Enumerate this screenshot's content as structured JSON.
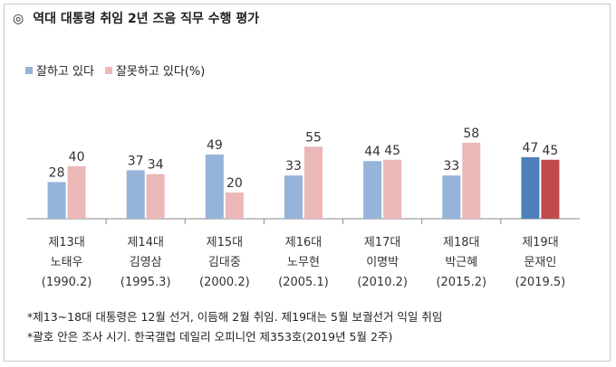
{
  "title": {
    "mark": "◎",
    "text": "역대 대통령 취임 2년 즈음 직무 수행 평가"
  },
  "legend": {
    "positive": "잘하고 있다",
    "negative": "잘못하고 있다(%)"
  },
  "colors": {
    "positive": "#96b3da",
    "negative": "#ebb7b7",
    "positive_current": "#4f7fb9",
    "negative_current": "#c04a4a",
    "axis": "#8a8a8a"
  },
  "chart_data": {
    "type": "bar",
    "title": "역대 대통령 취임 2년 즈음 직무 수행 평가",
    "categories": [
      [
        "제13대",
        "노태우",
        "(1990.2)"
      ],
      [
        "제14대",
        "김영삼",
        "(1995.3)"
      ],
      [
        "제15대",
        "김대중",
        "(2000.2)"
      ],
      [
        "제16대",
        "노무현",
        "(2005.1)"
      ],
      [
        "제17대",
        "이명박",
        "(2010.2)"
      ],
      [
        "제18대",
        "박근혜",
        "(2015.2)"
      ],
      [
        "제19대",
        "문재인",
        "(2019.5)"
      ]
    ],
    "series": [
      {
        "name": "잘하고 있다",
        "values": [
          28,
          37,
          49,
          33,
          44,
          33,
          47
        ]
      },
      {
        "name": "잘못하고 있다(%)",
        "values": [
          40,
          34,
          20,
          55,
          45,
          58,
          45
        ]
      }
    ],
    "ylim": [
      0,
      70
    ],
    "grid": false,
    "legend_position": "top-left",
    "highlight_index": 6
  },
  "footnotes": [
    "*제13~18대 대통령은 12월 선거, 이듬해 2월 취임. 제19대는 5월 보궐선거 익일 취임",
    "*괄호 안은 조사 시기. 한국갤럽 데일리 오피니언 제353호(2019년 5월 2주)"
  ]
}
